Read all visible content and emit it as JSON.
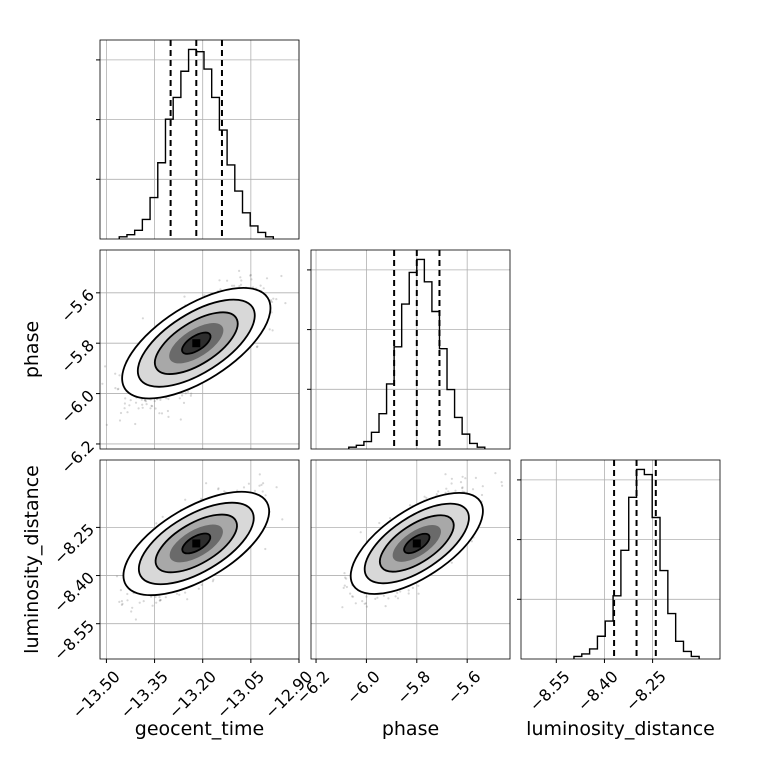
{
  "chart_data": {
    "type": "corner",
    "parameters": [
      "geocent_time",
      "phase",
      "luminosity_distance"
    ],
    "ranges": {
      "geocent_time": [
        -13.52,
        -12.9
      ],
      "phase": [
        -6.22,
        -5.43
      ],
      "luminosity_distance": [
        -8.66,
        -8.04
      ]
    },
    "ticks": {
      "geocent_time": [
        -13.5,
        -13.35,
        -13.2,
        -13.05,
        -12.9
      ],
      "phase": [
        -6.2,
        -6.0,
        -5.8,
        -5.6
      ],
      "luminosity_distance": [
        -8.55,
        -8.4,
        -8.25
      ]
    },
    "tick_labels": {
      "geocent_time": [
        "−13.50",
        "−13.35",
        "−13.20",
        "−13.05",
        "−12.90"
      ],
      "phase": [
        "−6.2",
        "−6.0",
        "−5.8",
        "−5.6"
      ],
      "luminosity_distance": [
        "−8.55",
        "−8.40",
        "−8.25"
      ]
    },
    "xlabels": [
      "geocent_time",
      "phase",
      "luminosity_distance"
    ],
    "ylabels": [
      "",
      "phase",
      "luminosity_distance"
    ],
    "quantiles": {
      "geocent_time": [
        -13.3,
        -13.22,
        -13.14
      ],
      "phase": [
        -5.89,
        -5.8,
        -5.71
      ],
      "luminosity_distance": [
        -8.37,
        -8.3,
        -8.24
      ]
    },
    "histograms": {
      "geocent_time": [
        1,
        2,
        4,
        9,
        19,
        35,
        55,
        65,
        77,
        87,
        86,
        78,
        65,
        50,
        34,
        22,
        12,
        6,
        3,
        1
      ],
      "phase": [
        1,
        2,
        4,
        9,
        19,
        35,
        55,
        78,
        95,
        102,
        90,
        74,
        54,
        32,
        17,
        8,
        3,
        1
      ],
      "luminosity_distance": [
        1,
        2,
        4,
        9,
        15,
        25,
        43,
        64,
        75,
        73,
        56,
        35,
        18,
        7,
        3,
        1
      ]
    },
    "peaks": {
      "geocent_time": -13.22,
      "phase": -5.8,
      "luminosity_distance": -8.3
    },
    "grid": true
  }
}
